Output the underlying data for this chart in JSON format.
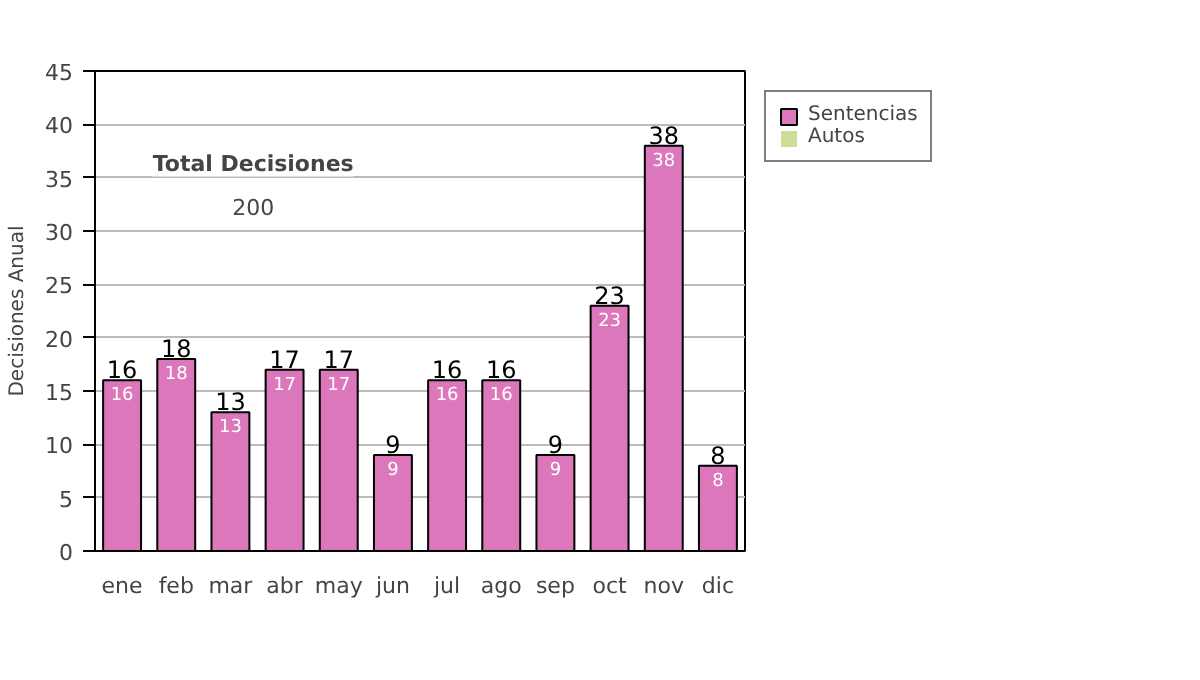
{
  "chart_data": {
    "type": "bar",
    "stacked": true,
    "ylabel": "Decisiones Anual",
    "categories": [
      "ene",
      "feb",
      "mar",
      "abr",
      "may",
      "jun",
      "jul",
      "ago",
      "sep",
      "oct",
      "nov",
      "dic"
    ],
    "series": [
      {
        "name": "Sentencias",
        "color": "#dd77bb",
        "values": [
          16,
          18,
          13,
          17,
          17,
          9,
          16,
          16,
          9,
          23,
          38,
          8
        ],
        "value_labels": [
          "16",
          "18",
          "13",
          "17",
          "17",
          "9",
          "16",
          "16",
          "9",
          "23",
          "38",
          "8"
        ]
      },
      {
        "name": "Autos",
        "color": "#ccdd99",
        "values": [
          0,
          0,
          0,
          0,
          0,
          0,
          0,
          0,
          0,
          0,
          0,
          0
        ]
      }
    ],
    "totals": [
      "16",
      "18",
      "13",
      "17",
      "17",
      "9",
      "16",
      "16",
      "9",
      "23",
      "38",
      "8"
    ],
    "ylim": [
      0,
      45
    ],
    "yticks": [
      0,
      5,
      10,
      15,
      20,
      25,
      30,
      35,
      40,
      45
    ],
    "grid": "y",
    "legend": "right",
    "annotations": [
      "Total Decisiones",
      "200"
    ]
  }
}
